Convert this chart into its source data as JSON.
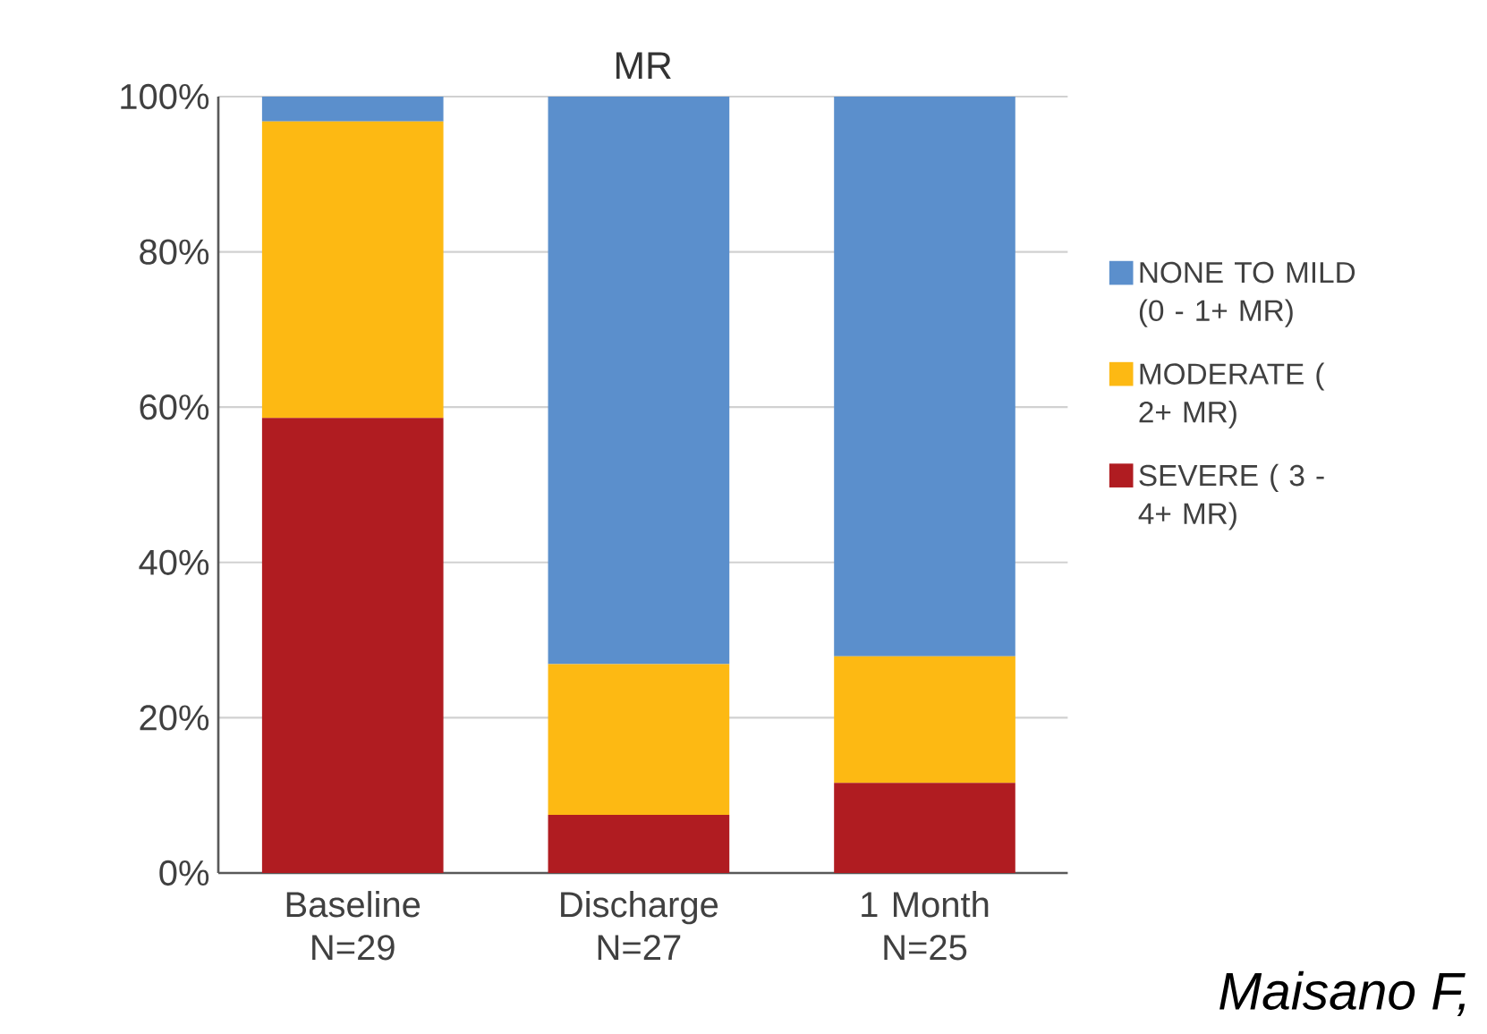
{
  "chart_data": {
    "type": "bar",
    "title": "MR",
    "stacked": true,
    "categories": [
      "Baseline N=29",
      "Discharge N=27",
      "1 Month N=25"
    ],
    "series": [
      {
        "name": "SEVERE ( 3 - 4+ MR)",
        "color": "#b01c21",
        "values": [
          58.6,
          7.5,
          11.6
        ]
      },
      {
        "name": "MODERATE ( 2+ MR)",
        "color": "#fdb913",
        "values": [
          38.2,
          19.4,
          16.3
        ]
      },
      {
        "name": "NONE TO MILD (0 - 1+ MR)",
        "color": "#5b8fcc",
        "values": [
          3.2,
          73.1,
          72.1
        ]
      }
    ],
    "ylim": [
      0,
      100
    ],
    "yticks": [
      {
        "value": 0,
        "label": "0%"
      },
      {
        "value": 20,
        "label": "20%"
      },
      {
        "value": 40,
        "label": "40%"
      },
      {
        "value": 60,
        "label": "60%"
      },
      {
        "value": 80,
        "label": "80%"
      },
      {
        "value": 100,
        "label": "100%"
      }
    ],
    "grid": "y",
    "legend": "right",
    "annotations": [
      "*Maisano F,*"
    ]
  }
}
